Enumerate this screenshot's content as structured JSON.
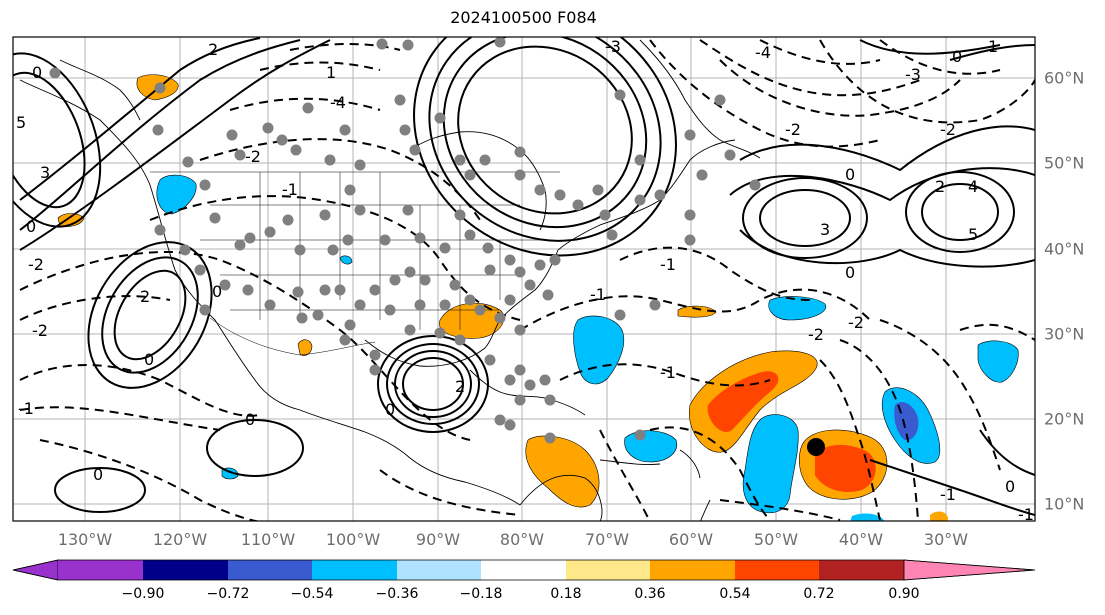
{
  "title": "2024100500 F084",
  "map": {
    "lon_labels": [
      "130°W",
      "120°W",
      "110°W",
      "100°W",
      "90°W",
      "80°W",
      "70°W",
      "60°W",
      "50°W",
      "40°W",
      "30°W"
    ],
    "lat_labels": [
      "60°N",
      "50°N",
      "40°N",
      "30°N",
      "20°N",
      "10°N"
    ],
    "contour_labels": [
      "-2",
      "-1",
      "0",
      "1",
      "2",
      "3",
      "4",
      "5",
      "-4",
      "-3"
    ],
    "contour_color": "#000000",
    "station_dot_color": "#808080",
    "storm_marker_color": "#000000"
  },
  "colorbar": {
    "ticks": [
      "−0.90",
      "−0.72",
      "−0.54",
      "−0.36",
      "−0.18",
      "0.18",
      "0.36",
      "0.54",
      "0.72",
      "0.90"
    ],
    "colors": [
      "#9932cc",
      "#00008b",
      "#3a5ad0",
      "#00bfff",
      "#aee2ff",
      "#ffffff",
      "#ffe88a",
      "#ffa500",
      "#ff4500",
      "#b22222",
      "#ff85b4"
    ]
  }
}
